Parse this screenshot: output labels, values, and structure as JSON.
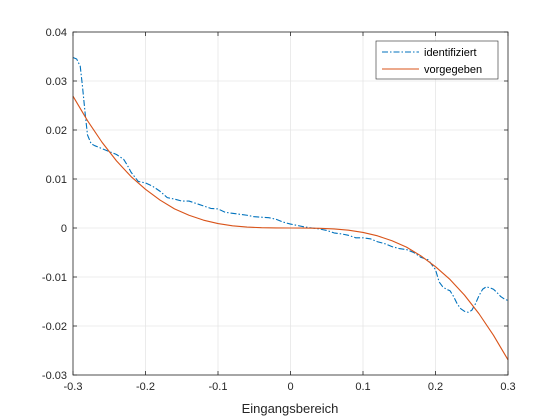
{
  "chart_data": {
    "type": "line",
    "title": "",
    "xlabel": "Eingangsbereich",
    "ylabel": "",
    "xlim": [
      -0.3,
      0.3
    ],
    "ylim": [
      -0.03,
      0.04
    ],
    "xticks": [
      -0.3,
      -0.2,
      -0.1,
      0,
      0.1,
      0.2,
      0.3
    ],
    "xtick_labels": [
      "-0.3",
      "-0.2",
      "-0.1",
      "0",
      "0.1",
      "0.2",
      "0.3"
    ],
    "yticks": [
      -0.03,
      -0.02,
      -0.01,
      0,
      0.01,
      0.02,
      0.03,
      0.04
    ],
    "ytick_labels": [
      "-0.03",
      "-0.02",
      "-0.01",
      "0",
      "0.01",
      "0.02",
      "0.03",
      "0.04"
    ],
    "grid": true,
    "legend_position": "top-right",
    "series": [
      {
        "name": "identifiziert",
        "color": "#0072BD",
        "style": "dash-dot",
        "x": [
          -0.3,
          -0.295,
          -0.29,
          -0.287,
          -0.283,
          -0.28,
          -0.275,
          -0.27,
          -0.265,
          -0.26,
          -0.25,
          -0.24,
          -0.23,
          -0.225,
          -0.22,
          -0.21,
          -0.2,
          -0.19,
          -0.18,
          -0.17,
          -0.16,
          -0.15,
          -0.14,
          -0.13,
          -0.12,
          -0.11,
          -0.1,
          -0.09,
          -0.08,
          -0.07,
          -0.06,
          -0.05,
          -0.04,
          -0.03,
          -0.02,
          -0.01,
          0,
          0.01,
          0.02,
          0.03,
          0.04,
          0.05,
          0.06,
          0.07,
          0.08,
          0.09,
          0.1,
          0.11,
          0.12,
          0.13,
          0.14,
          0.15,
          0.16,
          0.17,
          0.18,
          0.19,
          0.2,
          0.205,
          0.21,
          0.215,
          0.22,
          0.225,
          0.23,
          0.235,
          0.24,
          0.245,
          0.25,
          0.255,
          0.26,
          0.265,
          0.27,
          0.275,
          0.28,
          0.285,
          0.29,
          0.295,
          0.3
        ],
        "y": [
          0.0348,
          0.0345,
          0.033,
          0.029,
          0.023,
          0.019,
          0.0172,
          0.0168,
          0.0165,
          0.0162,
          0.0156,
          0.015,
          0.014,
          0.0128,
          0.0114,
          0.0095,
          0.0092,
          0.0085,
          0.0075,
          0.0062,
          0.0059,
          0.0055,
          0.0055,
          0.005,
          0.0045,
          0.004,
          0.0039,
          0.0032,
          0.003,
          0.0028,
          0.0026,
          0.0023,
          0.0022,
          0.0021,
          0.0018,
          0.0012,
          0.0008,
          0.0005,
          0.0002,
          0.0,
          -0.0002,
          -0.0005,
          -0.001,
          -0.0012,
          -0.0015,
          -0.002,
          -0.002,
          -0.0022,
          -0.0028,
          -0.0032,
          -0.0038,
          -0.0042,
          -0.0044,
          -0.005,
          -0.006,
          -0.0065,
          -0.0085,
          -0.011,
          -0.012,
          -0.0125,
          -0.0128,
          -0.014,
          -0.0155,
          -0.0165,
          -0.017,
          -0.0172,
          -0.0168,
          -0.0155,
          -0.0138,
          -0.0125,
          -0.012,
          -0.0122,
          -0.0125,
          -0.0132,
          -0.014,
          -0.0145,
          -0.0148
        ]
      },
      {
        "name": "vorgegeben",
        "color": "#D95319",
        "style": "solid",
        "x": [
          -0.3,
          -0.28,
          -0.26,
          -0.24,
          -0.22,
          -0.2,
          -0.18,
          -0.16,
          -0.14,
          -0.12,
          -0.1,
          -0.08,
          -0.06,
          -0.04,
          -0.02,
          0,
          0.02,
          0.04,
          0.06,
          0.08,
          0.1,
          0.12,
          0.14,
          0.16,
          0.18,
          0.2,
          0.22,
          0.24,
          0.26,
          0.28,
          0.3
        ],
        "y": [
          0.0269,
          0.0219,
          0.0175,
          0.0137,
          0.0105,
          0.0079,
          0.0057,
          0.0039,
          0.0026,
          0.0016,
          0.0009,
          0.00045,
          0.00019,
          6e-05,
          1e-05,
          0,
          -1e-05,
          -6e-05,
          -0.00019,
          -0.00045,
          -0.0009,
          -0.0016,
          -0.0026,
          -0.0039,
          -0.0057,
          -0.0079,
          -0.0105,
          -0.0137,
          -0.0175,
          -0.0219,
          -0.0269
        ]
      }
    ]
  }
}
